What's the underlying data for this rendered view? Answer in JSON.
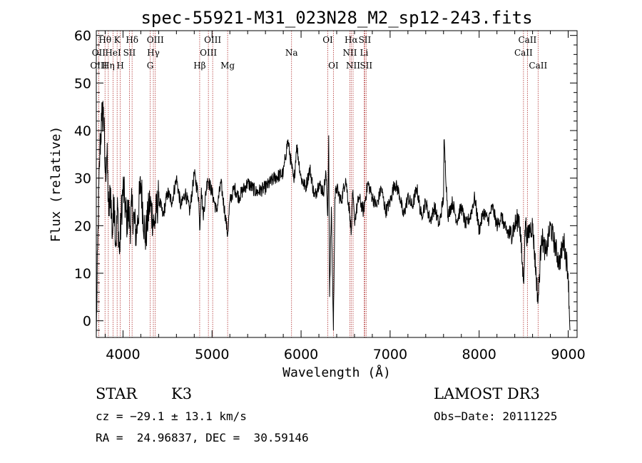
{
  "chart_data": {
    "type": "line",
    "title": "spec-55921-M31_023N28_M2_sp12-243.fits",
    "xlabel": "Wavelength (Å)",
    "ylabel": "Flux (relative)",
    "xlim": [
      3700,
      9100
    ],
    "ylim": [
      -3.5,
      61
    ],
    "xticks": [
      4000,
      5000,
      6000,
      7000,
      8000,
      9000
    ],
    "yticks": [
      0,
      10,
      20,
      30,
      40,
      50,
      60
    ],
    "series": [
      {
        "name": "flux",
        "x": [
          3700,
          3720,
          3740,
          3760,
          3780,
          3800,
          3820,
          3840,
          3860,
          3880,
          3900,
          3920,
          3940,
          3960,
          3980,
          4000,
          4020,
          4040,
          4060,
          4080,
          4100,
          4150,
          4200,
          4250,
          4300,
          4350,
          4400,
          4450,
          4500,
          4550,
          4600,
          4650,
          4700,
          4750,
          4800,
          4850,
          4861,
          4880,
          4900,
          4950,
          5000,
          5050,
          5100,
          5150,
          5175,
          5200,
          5250,
          5300,
          5400,
          5500,
          5600,
          5700,
          5800,
          5850,
          5890,
          5920,
          5950,
          6000,
          6050,
          6100,
          6150,
          6200,
          6250,
          6280,
          6300,
          6310,
          6320,
          6340,
          6363,
          6380,
          6400,
          6450,
          6500,
          6550,
          6563,
          6580,
          6600,
          6650,
          6700,
          6750,
          6800,
          6850,
          6900,
          6950,
          7000,
          7050,
          7100,
          7150,
          7200,
          7250,
          7300,
          7350,
          7400,
          7450,
          7500,
          7550,
          7600,
          7605,
          7650,
          7700,
          7750,
          7800,
          7850,
          7900,
          7950,
          8000,
          8050,
          8100,
          8150,
          8200,
          8250,
          8300,
          8350,
          8400,
          8450,
          8498,
          8520,
          8542,
          8560,
          8600,
          8662,
          8700,
          8750,
          8800,
          8850,
          8900,
          8950,
          9000,
          9020
        ],
        "values": [
          -3,
          20,
          36,
          42,
          45,
          31,
          35,
          22,
          28,
          18,
          26,
          16,
          24,
          14,
          22,
          28,
          25,
          21,
          23,
          20,
          24,
          18,
          29,
          17,
          25,
          20,
          26,
          22,
          27,
          25,
          30,
          24,
          27,
          23,
          31,
          26,
          19,
          28,
          22,
          30,
          27,
          23,
          29,
          22,
          18,
          25,
          28,
          26,
          29,
          27,
          28,
          30,
          31,
          38,
          33,
          29,
          37,
          30,
          28,
          32,
          26,
          29,
          27,
          31,
          22,
          39,
          5,
          24,
          -2,
          26,
          28,
          25,
          30,
          22,
          18,
          27,
          21,
          26,
          23,
          29,
          26,
          24,
          28,
          23,
          25,
          29,
          27,
          22,
          26,
          24,
          28,
          22,
          25,
          21,
          24,
          20,
          26,
          38,
          22,
          25,
          21,
          24,
          20,
          22,
          26,
          19,
          23,
          21,
          24,
          20,
          22,
          19,
          18,
          20,
          22,
          8,
          21,
          17,
          19,
          20,
          4,
          18,
          14,
          20,
          16,
          12,
          17,
          10,
          -2
        ]
      }
    ],
    "spectral_lines": [
      {
        "label": "Hθ",
        "wavelength": 3798,
        "row": 1
      },
      {
        "label": "OII",
        "wavelength": 3727,
        "row": 2
      },
      {
        "label": "OIII",
        "wavelength": 3727,
        "row": 3
      },
      {
        "label": "K",
        "wavelength": 3934,
        "row": 1
      },
      {
        "label": "HeI",
        "wavelength": 3889,
        "row": 2
      },
      {
        "label": "Hη",
        "wavelength": 3835,
        "row": 3
      },
      {
        "label": "H",
        "wavelength": 3969,
        "row": 3
      },
      {
        "label": "Hδ",
        "wavelength": 4102,
        "row": 1
      },
      {
        "label": "SII",
        "wavelength": 4072,
        "row": 2
      },
      {
        "label": "OIII",
        "wavelength": 4363,
        "row": 1
      },
      {
        "label": "Hγ",
        "wavelength": 4341,
        "row": 2
      },
      {
        "label": "G",
        "wavelength": 4305,
        "row": 3
      },
      {
        "label": "OIII",
        "wavelength": 5007,
        "row": 1
      },
      {
        "label": "OIII",
        "wavelength": 4959,
        "row": 2
      },
      {
        "label": "Hβ",
        "wavelength": 4861,
        "row": 3
      },
      {
        "label": "Mg",
        "wavelength": 5175,
        "row": 3
      },
      {
        "label": "Na",
        "wavelength": 5893,
        "row": 2
      },
      {
        "label": "OI",
        "wavelength": 6300,
        "row": 1
      },
      {
        "label": "OI",
        "wavelength": 6363,
        "row": 3
      },
      {
        "label": "Hα",
        "wavelength": 6563,
        "row": 1
      },
      {
        "label": "SII",
        "wavelength": 6716,
        "row": 1
      },
      {
        "label": "NII",
        "wavelength": 6548,
        "row": 2
      },
      {
        "label": "Li",
        "wavelength": 6708,
        "row": 2
      },
      {
        "label": "NII",
        "wavelength": 6584,
        "row": 3
      },
      {
        "label": "SII",
        "wavelength": 6731,
        "row": 3
      },
      {
        "label": "CaII",
        "wavelength": 8542,
        "row": 1
      },
      {
        "label": "CaII",
        "wavelength": 8498,
        "row": 2
      },
      {
        "label": "CaII",
        "wavelength": 8662,
        "row": 3
      }
    ],
    "colors": {
      "data": "#000000",
      "lines": "#b03030",
      "frame": "#000000"
    }
  },
  "footer": {
    "object_class": "STAR",
    "subclass": "K3",
    "survey": "LAMOST DR3",
    "cz": "cz = −29.1 ± 13.1 km/s",
    "obs_date": "Obs−Date: 20111225",
    "coords": "RA =  24.96837, DEC =  30.59146"
  }
}
